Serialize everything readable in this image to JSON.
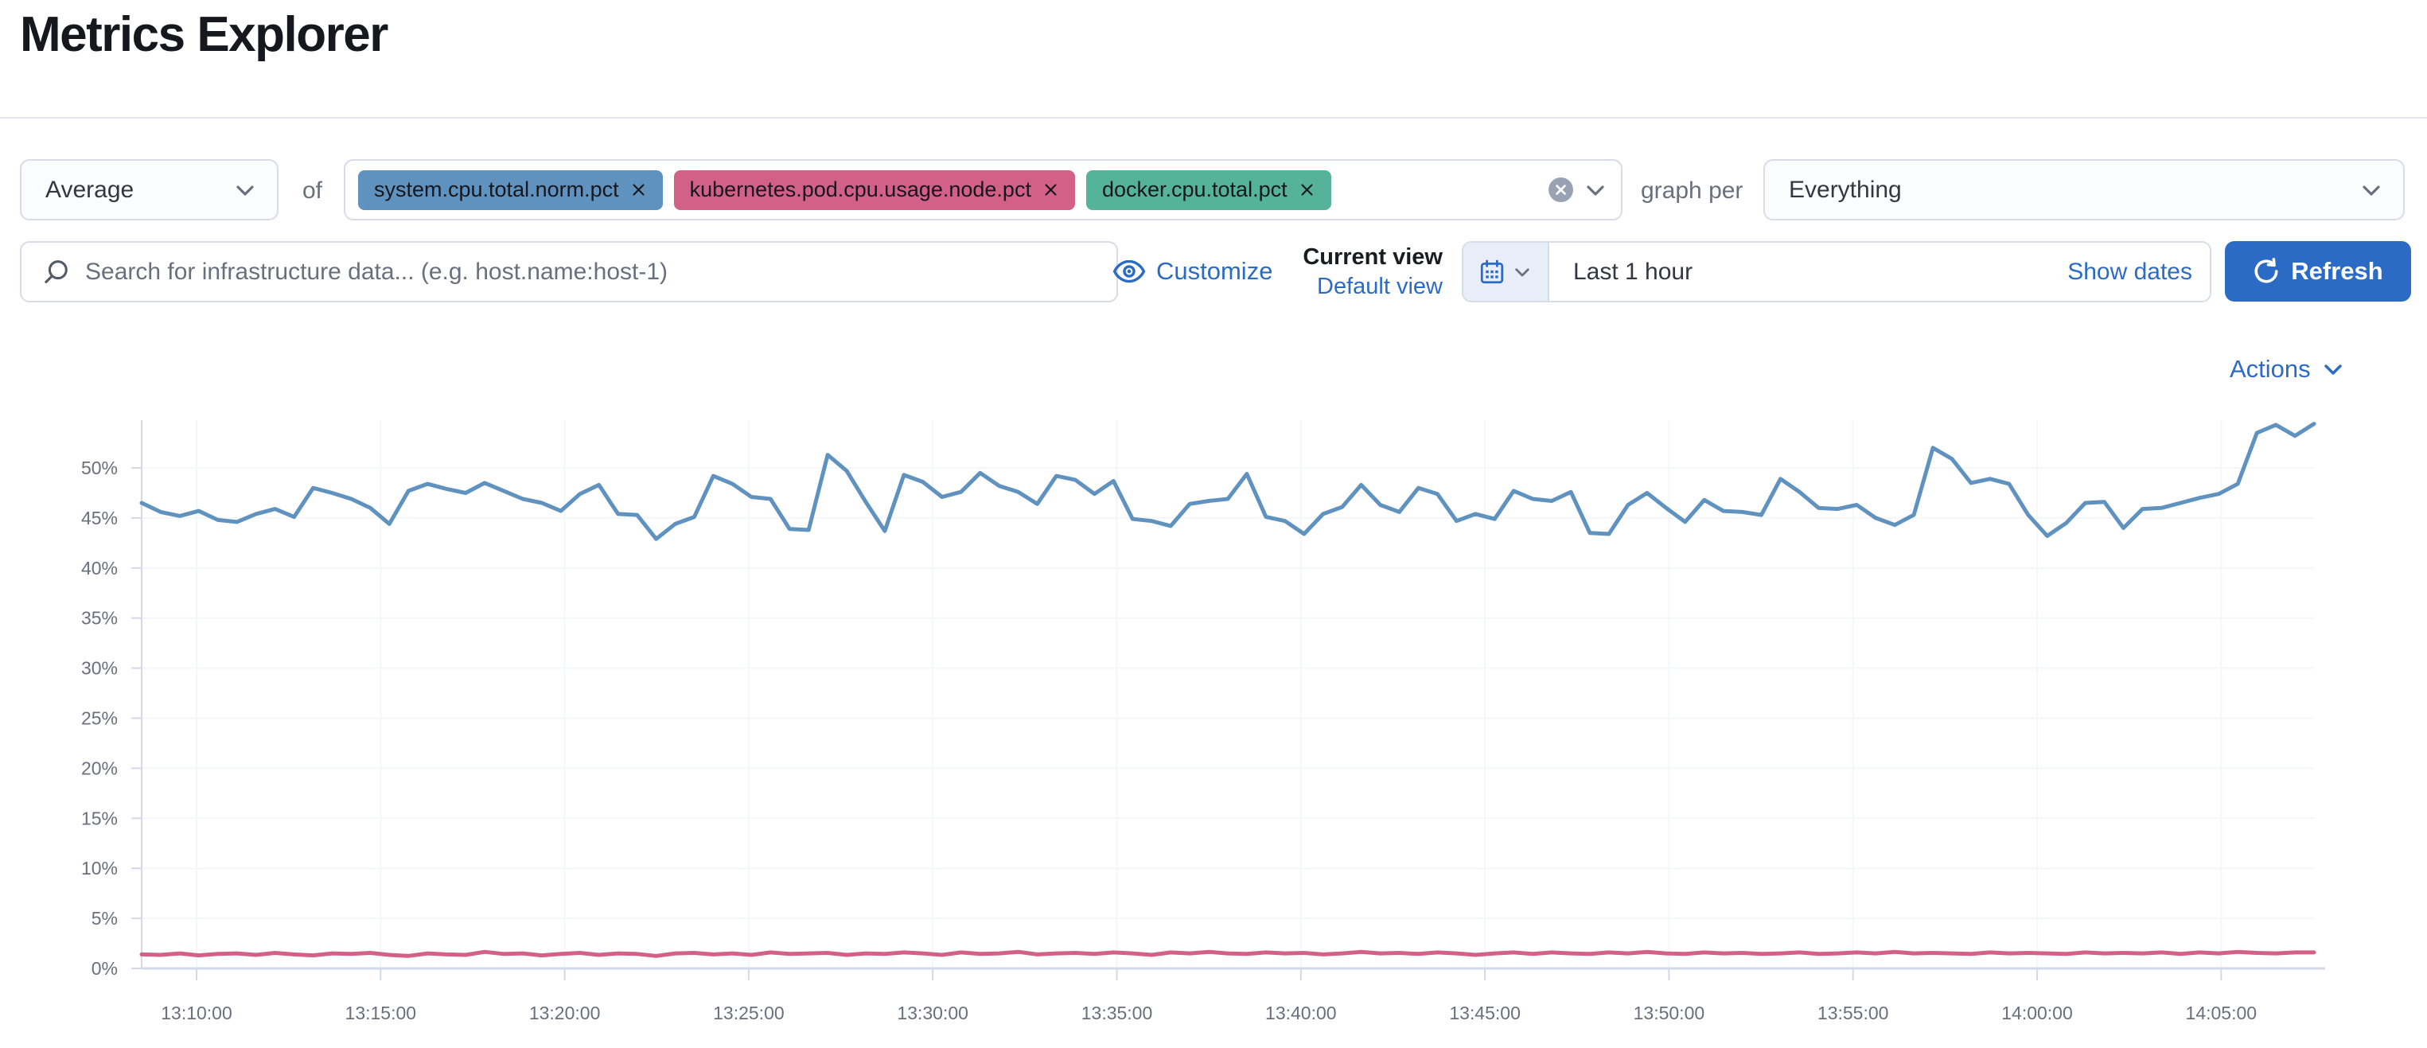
{
  "page": {
    "title": "Metrics Explorer"
  },
  "colors": {
    "accent": "#2b6bc6",
    "axis_text": "#69707d",
    "axis_line": "#d3dae6",
    "grid_line": "#f4f6fa",
    "tag_blue": "#6092C0",
    "tag_pink": "#D36086",
    "tag_green": "#54B399"
  },
  "toolbar": {
    "aggregation": {
      "value": "Average"
    },
    "of_label": "of",
    "metrics": [
      {
        "label": "system.cpu.total.norm.pct",
        "color": "#6092C0"
      },
      {
        "label": "kubernetes.pod.cpu.usage.node.pct",
        "color": "#D36086"
      },
      {
        "label": "docker.cpu.total.pct",
        "color": "#54B399"
      }
    ],
    "graph_per_label": "graph per",
    "group_by": {
      "value": "Everything"
    }
  },
  "search": {
    "placeholder": "Search for infrastructure data... (e.g. host.name:host-1)"
  },
  "view_controls": {
    "customize_label": "Customize",
    "current_view_label": "Current view",
    "default_view_label": "Default view"
  },
  "time_picker": {
    "range_label": "Last 1 hour",
    "show_dates_label": "Show dates",
    "refresh_label": "Refresh"
  },
  "chart_header": {
    "actions_label": "Actions"
  },
  "chart_data": {
    "type": "line",
    "title": "",
    "xlabel": "",
    "ylabel": "",
    "ylim": [
      0,
      54.5
    ],
    "grid": "faint horizontal",
    "legend": "none",
    "y_ticks": [
      "0%",
      "5%",
      "10%",
      "15%",
      "20%",
      "25%",
      "30%",
      "35%",
      "40%",
      "45%",
      "50%"
    ],
    "x_ticks": [
      "13:10:00",
      "13:15:00",
      "13:20:00",
      "13:25:00",
      "13:30:00",
      "13:35:00",
      "13:40:00",
      "13:45:00",
      "13:50:00",
      "13:55:00",
      "14:00:00",
      "14:05:00"
    ],
    "series": [
      {
        "name": "system.cpu.total.norm.pct",
        "color": "#6092C0",
        "unit": "%",
        "values": [
          46.5,
          45.6,
          45.2,
          45.7,
          44.8,
          44.6,
          45.4,
          45.9,
          45.1,
          48.0,
          47.5,
          46.9,
          46.0,
          44.4,
          47.7,
          48.4,
          47.9,
          47.5,
          48.5,
          47.7,
          46.9,
          46.5,
          45.7,
          47.4,
          48.3,
          45.4,
          45.3,
          42.9,
          44.4,
          45.1,
          49.2,
          48.4,
          47.1,
          46.9,
          43.9,
          43.8,
          51.3,
          49.7,
          46.6,
          43.7,
          49.3,
          48.6,
          47.1,
          47.6,
          49.5,
          48.2,
          47.6,
          46.4,
          49.2,
          48.8,
          47.4,
          48.7,
          44.9,
          44.7,
          44.2,
          46.4,
          46.7,
          46.9,
          49.4,
          45.1,
          44.7,
          43.4,
          45.4,
          46.1,
          48.3,
          46.3,
          45.6,
          48.0,
          47.4,
          44.7,
          45.4,
          44.9,
          47.7,
          46.9,
          46.7,
          47.6,
          43.5,
          43.4,
          46.3,
          47.5,
          46.0,
          44.6,
          46.8,
          45.7,
          45.6,
          45.3,
          48.9,
          47.6,
          46.0,
          45.9,
          46.3,
          45.0,
          44.3,
          45.3,
          52.0,
          50.9,
          48.5,
          48.9,
          48.4,
          45.3,
          43.2,
          44.5,
          46.5,
          46.6,
          44.0,
          45.9,
          46.0,
          46.5,
          47.0,
          47.4,
          48.4,
          53.5,
          54.3,
          53.2,
          54.4
        ]
      },
      {
        "name": "kubernetes.pod.cpu.usage.node.pct",
        "color": "#D36086",
        "unit": "%",
        "values": [
          1.4,
          1.35,
          1.5,
          1.3,
          1.45,
          1.5,
          1.35,
          1.55,
          1.4,
          1.3,
          1.5,
          1.45,
          1.55,
          1.35,
          1.25,
          1.5,
          1.4,
          1.35,
          1.65,
          1.45,
          1.5,
          1.3,
          1.45,
          1.55,
          1.35,
          1.5,
          1.45,
          1.25,
          1.5,
          1.55,
          1.4,
          1.5,
          1.35,
          1.6,
          1.45,
          1.5,
          1.55,
          1.35,
          1.5,
          1.45,
          1.6,
          1.5,
          1.35,
          1.6,
          1.45,
          1.5,
          1.65,
          1.4,
          1.5,
          1.55,
          1.45,
          1.6,
          1.5,
          1.35,
          1.6,
          1.5,
          1.65,
          1.5,
          1.45,
          1.6,
          1.5,
          1.55,
          1.4,
          1.5,
          1.65,
          1.5,
          1.55,
          1.45,
          1.6,
          1.5,
          1.35,
          1.5,
          1.6,
          1.45,
          1.6,
          1.5,
          1.45,
          1.6,
          1.5,
          1.65,
          1.5,
          1.45,
          1.6,
          1.5,
          1.55,
          1.45,
          1.5,
          1.6,
          1.45,
          1.5,
          1.6,
          1.5,
          1.65,
          1.5,
          1.55,
          1.5,
          1.45,
          1.6,
          1.5,
          1.55,
          1.5,
          1.45,
          1.6,
          1.5,
          1.55,
          1.5,
          1.6,
          1.45,
          1.6,
          1.5,
          1.65,
          1.55,
          1.5,
          1.6,
          1.6
        ]
      }
    ]
  }
}
